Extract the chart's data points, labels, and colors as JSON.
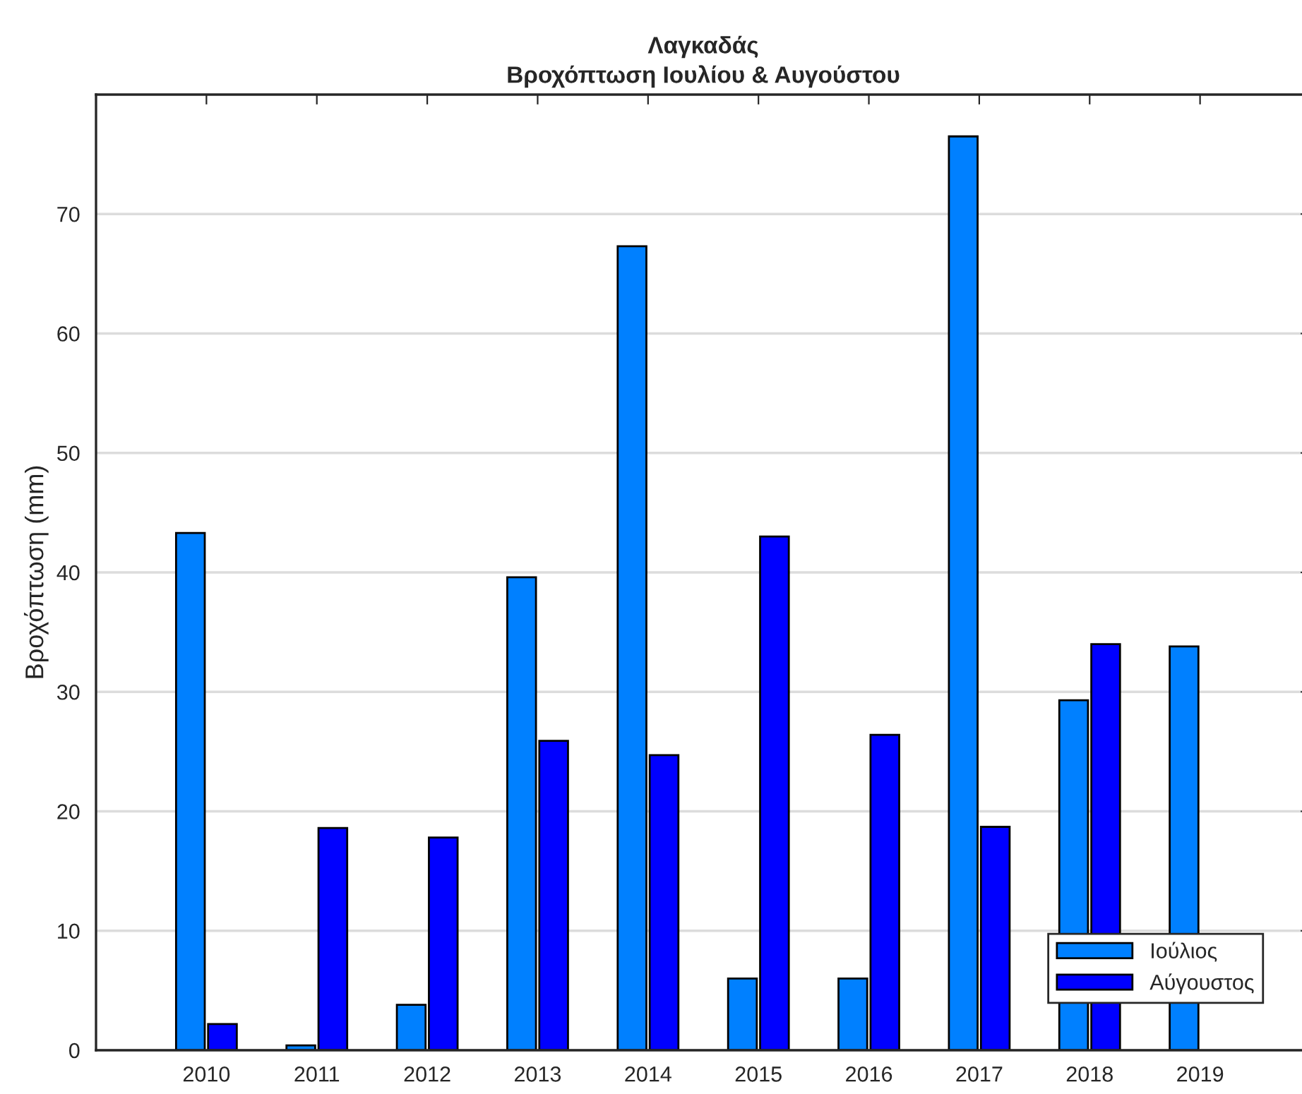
{
  "chart_data": {
    "type": "bar",
    "title": "Λαγκαδάς",
    "subtitle": "Βροχόπτωση Ιουλίου & Αυγούστου",
    "ylabel": "Βροχόπτωση (mm)",
    "categories": [
      "2010",
      "2011",
      "2012",
      "2013",
      "2014",
      "2015",
      "2016",
      "2017",
      "2018",
      "2019"
    ],
    "series": [
      {
        "name": "Ιούλιος",
        "color": "#0080ff",
        "values": [
          43.3,
          0.4,
          3.8,
          39.6,
          67.3,
          6.0,
          6.0,
          76.5,
          29.3,
          33.8
        ]
      },
      {
        "name": "Αύγουστος",
        "color": "#0000ff",
        "values": [
          2.2,
          18.6,
          17.8,
          25.9,
          24.7,
          43.0,
          26.4,
          18.7,
          34.0,
          null
        ]
      }
    ],
    "ylim": [
      0,
      80
    ],
    "yticks": [
      0,
      10,
      20,
      30,
      40,
      50,
      60,
      70
    ],
    "grid": "y",
    "legend": "bottom right"
  }
}
